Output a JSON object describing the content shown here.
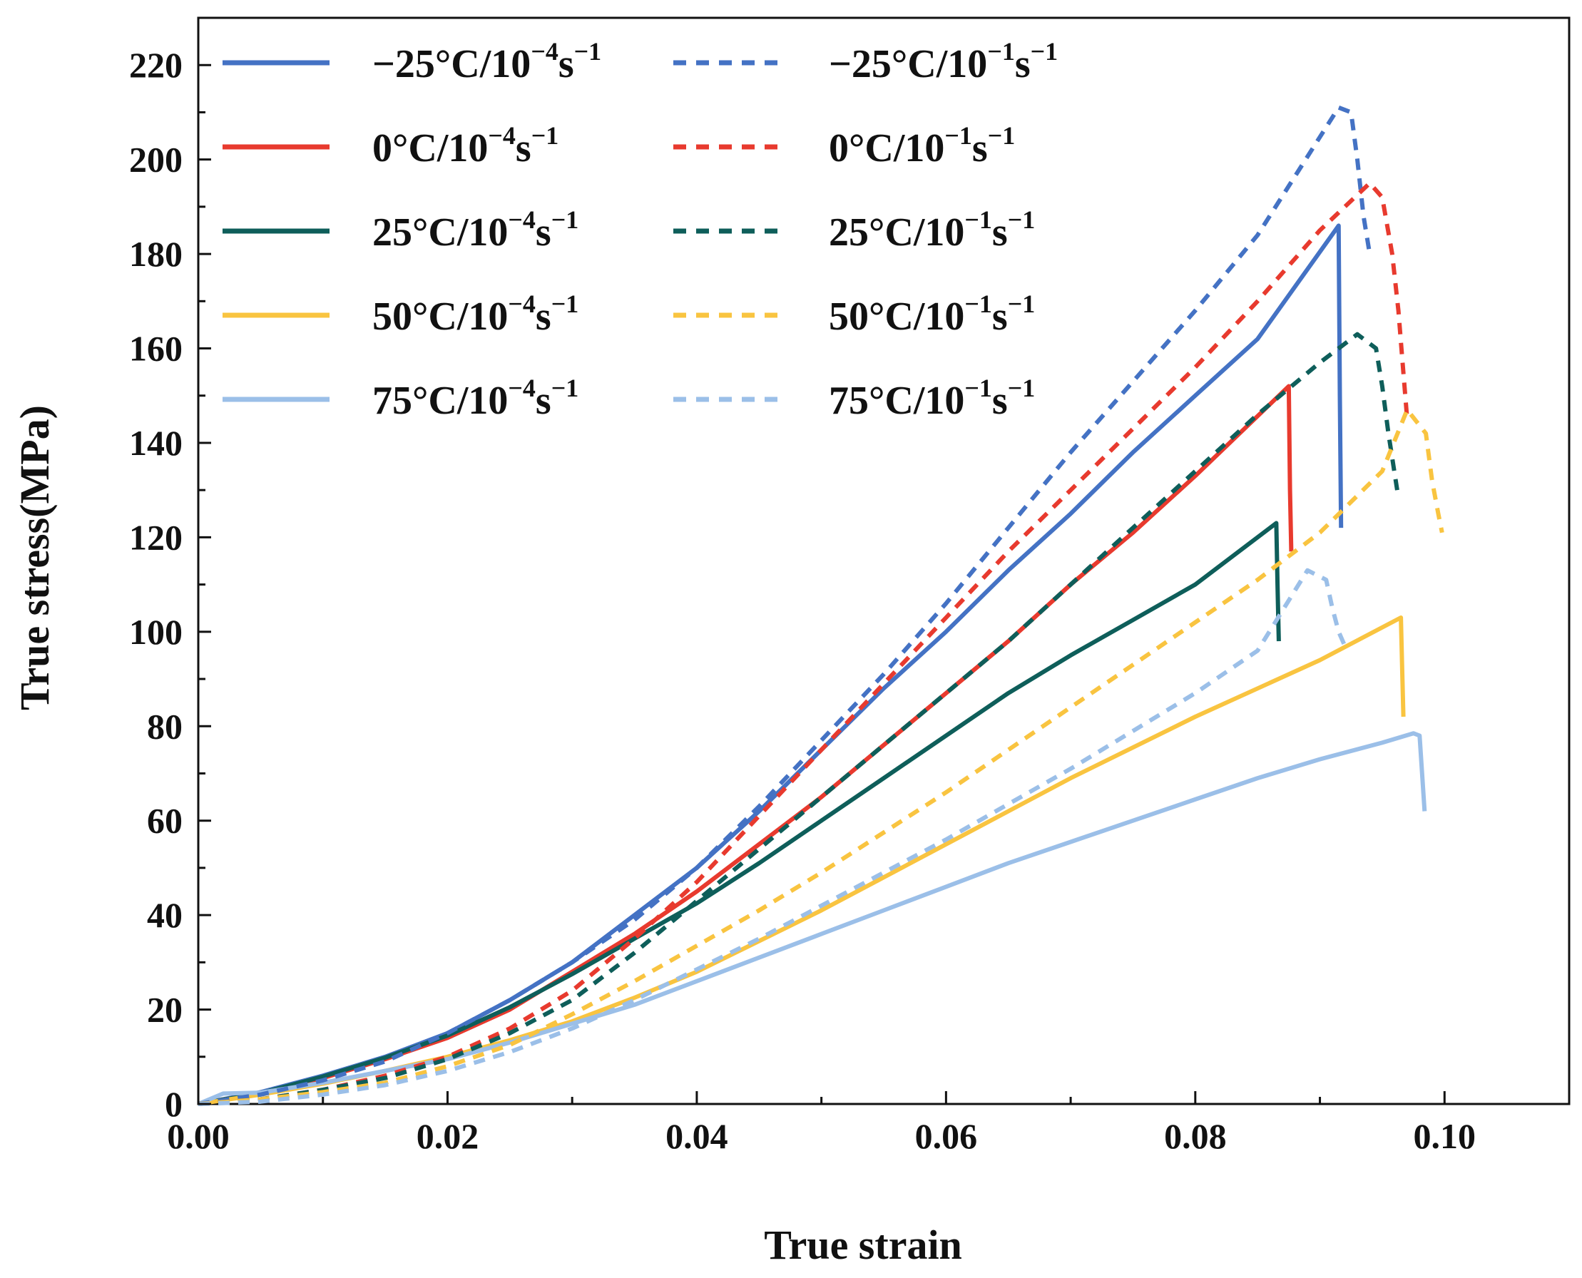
{
  "chart_data": {
    "type": "line",
    "title": "",
    "xlabel": "True strain",
    "ylabel": "True stress(MPa)",
    "xlim": [
      0,
      0.11
    ],
    "ylim": [
      0,
      230
    ],
    "xticks": [
      0.0,
      0.02,
      0.04,
      0.06,
      0.08,
      0.1
    ],
    "xtick_labels": [
      "0.00",
      "0.02",
      "0.04",
      "0.06",
      "0.08",
      "0.10"
    ],
    "yticks": [
      0,
      20,
      40,
      60,
      80,
      100,
      120,
      140,
      160,
      180,
      200,
      220
    ],
    "ytick_labels": [
      "0",
      "20",
      "40",
      "60",
      "80",
      "100",
      "120",
      "140",
      "160",
      "180",
      "200",
      "220"
    ],
    "grid": false,
    "legend_position": "top-left",
    "series": [
      {
        "name": "−25°C/10−4s−1",
        "temp": "−25°C/10",
        "rate_exp": "−4",
        "unit": "s",
        "unit_exp": "−1",
        "color": "#4472C4",
        "style": "solid",
        "x": [
          0,
          0.005,
          0.01,
          0.015,
          0.02,
          0.025,
          0.03,
          0.035,
          0.04,
          0.045,
          0.05,
          0.055,
          0.06,
          0.065,
          0.07,
          0.075,
          0.08,
          0.085,
          0.0915,
          0.0916,
          0.0917
        ],
        "y": [
          0,
          2.5,
          6,
          10,
          15,
          22,
          30,
          40,
          50,
          62,
          75,
          88,
          100,
          113,
          125,
          138,
          150,
          162,
          186,
          150,
          122
        ]
      },
      {
        "name": "0°C/10−4s−1",
        "temp": "0°C/10",
        "rate_exp": "−4",
        "unit": "s",
        "unit_exp": "−1",
        "color": "#E83A2E",
        "style": "solid",
        "x": [
          0,
          0.005,
          0.01,
          0.015,
          0.02,
          0.025,
          0.03,
          0.035,
          0.04,
          0.045,
          0.05,
          0.055,
          0.06,
          0.065,
          0.07,
          0.075,
          0.08,
          0.0875,
          0.0876,
          0.0877
        ],
        "y": [
          0,
          2.3,
          5.5,
          9.5,
          14,
          20,
          28,
          36,
          45,
          55,
          65,
          76,
          87,
          98,
          110,
          121,
          133,
          152,
          130,
          117
        ]
      },
      {
        "name": "25°C/10−4s−1",
        "temp": "25°C/10",
        "rate_exp": "−4",
        "unit": "s",
        "unit_exp": "−1",
        "color": "#0E5E5A",
        "style": "solid",
        "x": [
          0,
          0.005,
          0.01,
          0.015,
          0.02,
          0.025,
          0.03,
          0.035,
          0.04,
          0.045,
          0.05,
          0.055,
          0.06,
          0.065,
          0.07,
          0.075,
          0.08,
          0.0865,
          0.0866,
          0.0867
        ],
        "y": [
          0,
          2.3,
          5.8,
          9.8,
          14.5,
          20.5,
          27.5,
          35,
          42.5,
          51,
          60,
          69,
          78,
          87,
          95,
          102.5,
          110,
          123,
          110,
          98
        ]
      },
      {
        "name": "50°C/10−4s−1",
        "temp": "50°C/10",
        "rate_exp": "−4",
        "unit": "s",
        "unit_exp": "−1",
        "color": "#F9C440",
        "style": "solid",
        "x": [
          0,
          0.005,
          0.01,
          0.015,
          0.02,
          0.025,
          0.03,
          0.035,
          0.04,
          0.045,
          0.05,
          0.055,
          0.06,
          0.065,
          0.07,
          0.075,
          0.08,
          0.085,
          0.09,
          0.0965,
          0.0966,
          0.0967
        ],
        "y": [
          0,
          2,
          4.3,
          7,
          10,
          13.5,
          17.5,
          22.5,
          28,
          34.5,
          41,
          48,
          55,
          62,
          69,
          75.5,
          82,
          88,
          94,
          103,
          92,
          82
        ]
      },
      {
        "name": "75°C/10−4s−1",
        "temp": "75°C/10",
        "rate_exp": "−4",
        "unit": "s",
        "unit_exp": "−1",
        "color": "#9BBFE8",
        "style": "solid",
        "x": [
          0,
          0.002,
          0.005,
          0.01,
          0.015,
          0.02,
          0.025,
          0.03,
          0.035,
          0.04,
          0.045,
          0.05,
          0.055,
          0.06,
          0.065,
          0.07,
          0.075,
          0.08,
          0.085,
          0.09,
          0.095,
          0.0975,
          0.098,
          0.0982,
          0.0984
        ],
        "y": [
          0,
          2.2,
          2.4,
          4.5,
          7,
          9.5,
          13,
          17,
          21,
          26,
          31,
          36,
          41,
          46,
          51,
          55.5,
          60,
          64.5,
          69,
          73,
          76.5,
          78.5,
          78,
          70,
          62
        ]
      },
      {
        "name": "−25°C/10−1s−1",
        "temp": "−25°C/10",
        "rate_exp": "−1",
        "unit": "s",
        "unit_exp": "−1",
        "color": "#4472C4",
        "style": "dashed",
        "x": [
          0,
          0.005,
          0.01,
          0.015,
          0.02,
          0.025,
          0.03,
          0.035,
          0.04,
          0.045,
          0.05,
          0.055,
          0.06,
          0.065,
          0.07,
          0.075,
          0.08,
          0.085,
          0.0915,
          0.0925,
          0.093,
          0.0935,
          0.094
        ],
        "y": [
          0,
          2,
          5,
          9,
          15,
          22,
          30,
          39,
          50,
          63,
          77,
          91,
          106,
          122,
          138,
          153,
          168,
          184,
          211,
          210,
          200,
          188,
          180
        ]
      },
      {
        "name": "0°C/10−1s−1",
        "temp": "0°C/10",
        "rate_exp": "−1",
        "unit": "s",
        "unit_exp": "−1",
        "color": "#E83A2E",
        "style": "dashed",
        "x": [
          0,
          0.005,
          0.01,
          0.015,
          0.02,
          0.025,
          0.03,
          0.035,
          0.04,
          0.045,
          0.05,
          0.055,
          0.06,
          0.065,
          0.07,
          0.075,
          0.08,
          0.085,
          0.09,
          0.094,
          0.095,
          0.0958,
          0.0963,
          0.0966,
          0.097
        ],
        "y": [
          0,
          1,
          3,
          6,
          10,
          16,
          24,
          35,
          47,
          61,
          75,
          89,
          103,
          117,
          130,
          143,
          156,
          170,
          185,
          195,
          192,
          180,
          168,
          158,
          145
        ]
      },
      {
        "name": "25°C/10−1s−1",
        "temp": "25°C/10",
        "rate_exp": "−1",
        "unit": "s",
        "unit_exp": "−1",
        "color": "#0E5E5A",
        "style": "dashed",
        "x": [
          0,
          0.005,
          0.01,
          0.015,
          0.02,
          0.025,
          0.03,
          0.035,
          0.04,
          0.045,
          0.05,
          0.055,
          0.06,
          0.065,
          0.07,
          0.075,
          0.08,
          0.085,
          0.09,
          0.093,
          0.0945,
          0.095,
          0.0955,
          0.0962
        ],
        "y": [
          0,
          1,
          3,
          5.5,
          9.5,
          15,
          22,
          32,
          43,
          54,
          65,
          76,
          87,
          98,
          110,
          122,
          134,
          146,
          157,
          163,
          160,
          152,
          142,
          130
        ]
      },
      {
        "name": "50°C/10−1s−1",
        "temp": "50°C/10",
        "rate_exp": "−1",
        "unit": "s",
        "unit_exp": "−1",
        "color": "#F9C440",
        "style": "dashed",
        "x": [
          0,
          0.005,
          0.01,
          0.015,
          0.02,
          0.025,
          0.03,
          0.035,
          0.04,
          0.045,
          0.05,
          0.055,
          0.06,
          0.065,
          0.07,
          0.075,
          0.08,
          0.085,
          0.09,
          0.095,
          0.097,
          0.0985,
          0.099,
          0.0995,
          0.0998
        ],
        "y": [
          0,
          1,
          2.5,
          4.5,
          8,
          12.5,
          19,
          26,
          33.5,
          41,
          49,
          57.5,
          66,
          75,
          84,
          93,
          102,
          111,
          121,
          134,
          147,
          142,
          132,
          125,
          121
        ]
      },
      {
        "name": "75°C/10−1s−1",
        "temp": "75°C/10",
        "rate_exp": "−1",
        "unit": "s",
        "unit_exp": "−1",
        "color": "#9BBFE8",
        "style": "dashed",
        "x": [
          0,
          0.005,
          0.01,
          0.015,
          0.02,
          0.025,
          0.03,
          0.035,
          0.04,
          0.045,
          0.05,
          0.055,
          0.06,
          0.065,
          0.07,
          0.075,
          0.08,
          0.085,
          0.089,
          0.0905,
          0.091,
          0.0915,
          0.092
        ],
        "y": [
          0,
          0.5,
          2,
          4,
          7,
          11,
          16,
          22,
          28.5,
          35,
          42,
          49,
          56,
          63.5,
          71,
          79,
          87,
          96,
          113,
          111,
          105,
          100,
          97
        ]
      }
    ]
  }
}
